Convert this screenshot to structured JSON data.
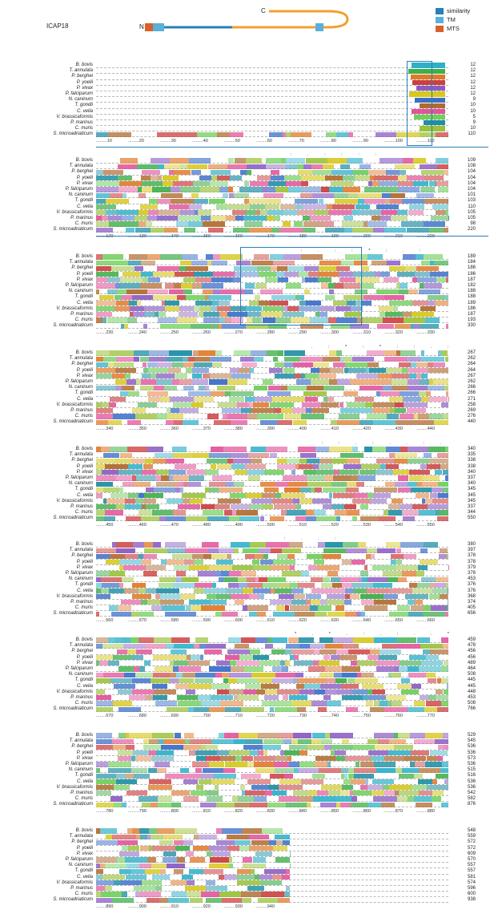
{
  "header": {
    "protein": "ICAP18",
    "n_term": "N",
    "c_term": "C",
    "legend": [
      {
        "label": "similarity",
        "color": "#2a7fb8"
      },
      {
        "label": "TM",
        "color": "#5ab0d8"
      },
      {
        "label": "MTS",
        "color": "#d9602a"
      }
    ]
  },
  "colors": {
    "similarity": "#2a7fb8",
    "tm": "#5ab0d8",
    "mts": "#d9602a",
    "linker": "#f0a030"
  },
  "species": [
    "B. bovis",
    "T. annulata",
    "P. berghei",
    "P. yoelii",
    "P. vivax",
    "P. falciparum",
    "N. caninum",
    "T. gondii",
    "C. velia",
    "V. brassicaformis",
    "P. marinus",
    "C. muris",
    "S. microadriaticum"
  ],
  "blocks": [
    {
      "lengths": [
        12,
        12,
        12,
        12,
        12,
        12,
        9,
        10,
        10,
        5,
        9,
        10,
        110
      ],
      "ticks": [
        ".........10",
        ".........20",
        ".........30",
        ".........40",
        ".........50",
        ".........60",
        ".........70",
        ".........80",
        ".........90",
        ".........100",
        ".........110"
      ],
      "marks": ""
    },
    {
      "lengths": [
        109,
        108,
        104,
        104,
        104,
        104,
        101,
        103,
        110,
        105,
        105,
        98,
        220
      ],
      "ticks": [
        "........120",
        ".........130",
        ".........140",
        ".........150",
        ".........160",
        ".........170",
        ".........180",
        ".........190",
        ".........200",
        ".........210",
        ".........220"
      ],
      "marks": ": . : : : :"
    },
    {
      "lengths": [
        189,
        184,
        186,
        186,
        187,
        182,
        188,
        188,
        189,
        186,
        187,
        193,
        330
      ],
      "ticks": [
        "........230",
        ".........240",
        ".........250",
        ".........260",
        ".........270",
        ".........280",
        ".........290",
        ".........300",
        ".........310",
        ".........320",
        ".........330"
      ],
      "marks": ": . : : * : . :"
    },
    {
      "lengths": [
        267,
        262,
        264,
        264,
        267,
        262,
        266,
        266,
        271,
        258,
        269,
        276,
        440
      ],
      "ticks": [
        "........340",
        ".........350",
        ".........360",
        ".........370",
        ".........380",
        ".........390",
        ".........400",
        ".........410",
        ".........420",
        ".........430",
        ".........440"
      ],
      "marks": ". : * : * : : . :"
    },
    {
      "lengths": [
        340,
        335,
        338,
        338,
        340,
        337,
        340,
        345,
        345,
        345,
        337,
        344,
        550
      ],
      "ticks": [
        "........450",
        ".........460",
        ".........470",
        ".........480",
        ".........490",
        ".........500",
        ".........510",
        ".........520",
        ".........530",
        ".........540",
        ".........550"
      ],
      "marks": ": : . : . . : ."
    },
    {
      "lengths": [
        380,
        397,
        378,
        378,
        379,
        378,
        453,
        376,
        376,
        368,
        374,
        405,
        656
      ],
      "ticks": [
        "........560",
        ".........570",
        ".........580",
        ".........590",
        ".........600",
        ".........610",
        ".........620",
        ".........630",
        ".........640",
        ".........650",
        ".........660"
      ],
      "marks": ": . . :"
    },
    {
      "lengths": [
        459,
        478,
        456,
        456,
        489,
        464,
        508,
        445,
        445,
        448,
        453,
        508,
        766
      ],
      "ticks": [
        "........670",
        ".........680",
        ".........690",
        ".........700",
        ".........710",
        ".........720",
        ".........730",
        ".........740",
        ".........750",
        ".........760",
        ".........770"
      ],
      "marks": "* . * . : . : . . *"
    },
    {
      "lengths": [
        529,
        545,
        536,
        536,
        573,
        536,
        515,
        516,
        536,
        536,
        542,
        582,
        876
      ],
      "ticks": [
        "........780",
        ".........790",
        ".........800",
        ".........810",
        ".........820",
        ".........830",
        ".........840",
        ".........850",
        ".........860",
        ".........870",
        ".........880"
      ],
      "marks": ""
    },
    {
      "lengths": [
        548,
        559,
        572,
        572,
        609,
        570,
        557,
        557,
        581,
        574,
        596,
        600,
        938
      ],
      "ticks": [
        "........890",
        ".........900",
        ".........910",
        ".........920",
        ".........930",
        ".........940"
      ],
      "marks": ""
    }
  ]
}
